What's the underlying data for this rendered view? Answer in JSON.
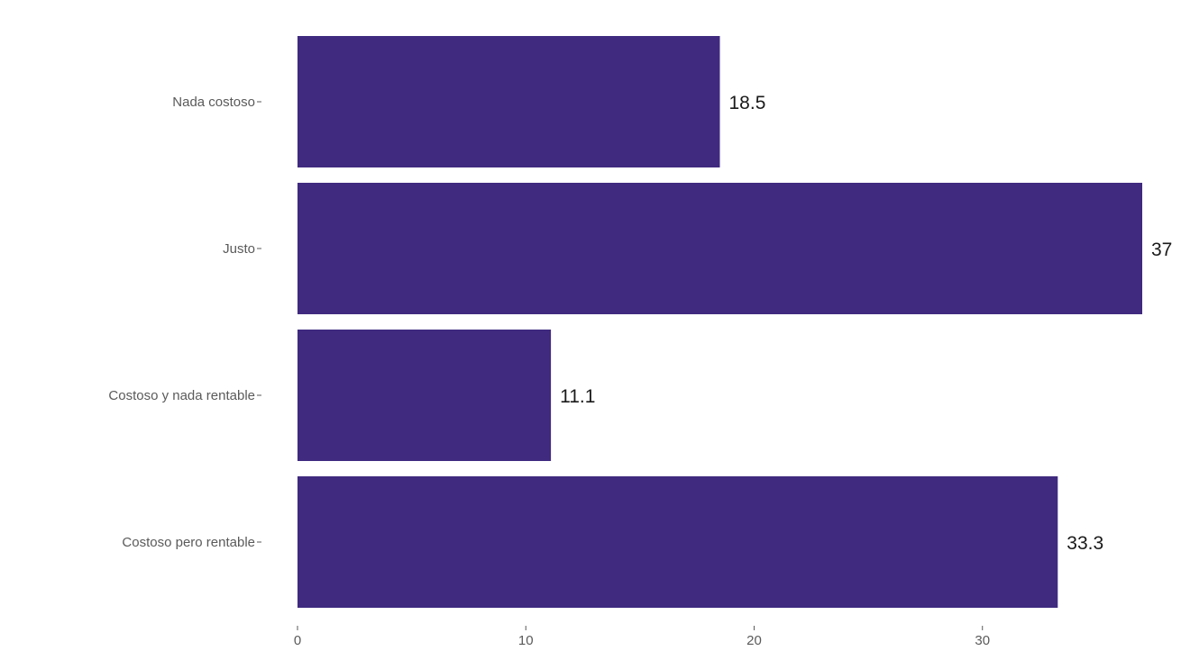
{
  "chart_data": {
    "type": "bar",
    "orientation": "horizontal",
    "categories": [
      "Nada costoso",
      "Justo",
      "Costoso y nada rentable",
      "Costoso pero rentable"
    ],
    "values": [
      18.5,
      37,
      11.1,
      33.3
    ],
    "value_labels": [
      "18.5",
      "37",
      "11.1",
      "33.3"
    ],
    "title": "",
    "xlabel": "",
    "ylabel": "",
    "xlim": [
      0,
      37
    ],
    "xticks": [
      0,
      10,
      20,
      30
    ],
    "xtick_labels": [
      "0",
      "10",
      "20",
      "30"
    ],
    "grid": false,
    "legend": "none",
    "bar_color": "#3f2a7f"
  }
}
